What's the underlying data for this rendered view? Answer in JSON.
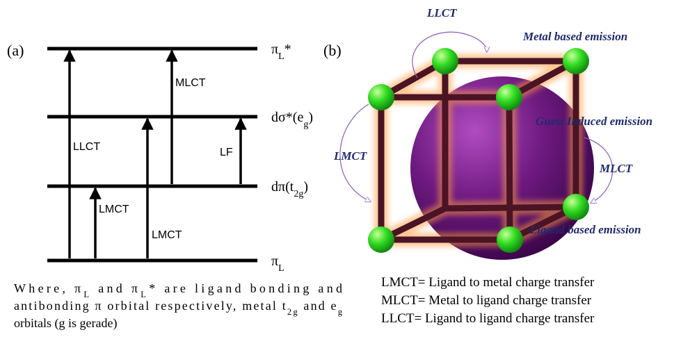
{
  "panel_a": {
    "label": "(a)",
    "levels": [
      [
        "π",
        {
          "sub": "L"
        },
        "*"
      ],
      [
        "dσ*(e",
        {
          "sub": "g"
        },
        ")"
      ],
      [
        "dπ(t",
        {
          "sub": "2g"
        },
        ")"
      ],
      [
        "π",
        {
          "sub": "L"
        }
      ]
    ],
    "transitions": [
      "MLCT",
      "LLCT",
      "LF",
      "LMCT",
      "LMCT"
    ],
    "caption": [
      [
        "Where, π",
        {
          "sub": "L"
        },
        " and π",
        {
          "sub": "L"
        },
        "* are ligand bonding and"
      ],
      [
        "antibonding π orbital respectively, metal t",
        {
          "sub": "2g"
        },
        " and e",
        {
          "sub": "g"
        }
      ],
      [
        "orbitals (g is gerade)"
      ]
    ]
  },
  "panel_b": {
    "label": "(b)",
    "annotations": [
      "LLCT",
      "Metal based emission",
      "Guest Induced emission",
      "LMCT",
      "MLCT",
      "Ligand based emission"
    ],
    "legend": [
      "LMCT= Ligand to metal charge transfer",
      "MLCT= Metal to ligand charge transfer",
      "LLCT= Ligand to ligand charge transfer"
    ]
  }
}
